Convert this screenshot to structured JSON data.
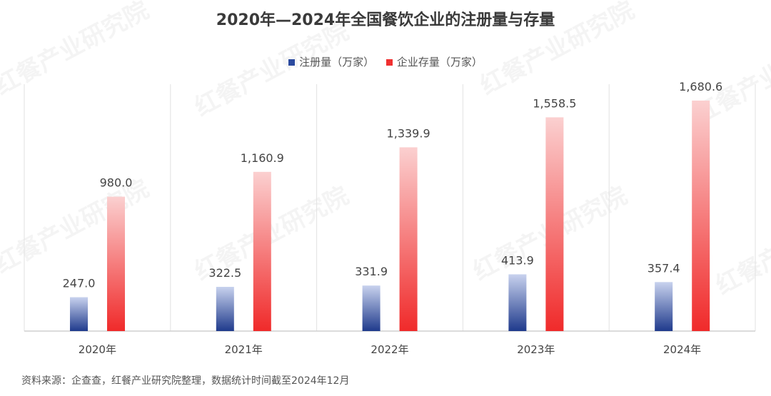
{
  "watermark": "红餐产业研究院",
  "source": "资料来源：企查查，红餐产业研究院整理，数据统计时间截至2024年12月",
  "chart_data": {
    "type": "bar",
    "title": "2020年—2024年全国餐饮企业的注册量与存量",
    "categories": [
      "2020年",
      "2021年",
      "2022年",
      "2023年",
      "2024年"
    ],
    "series": [
      {
        "name": "注册量（万家）",
        "values": [
          247.0,
          322.5,
          331.9,
          413.9,
          357.4
        ],
        "color": "#2b4a9e"
      },
      {
        "name": "企业存量（万家）",
        "values": [
          980.0,
          1160.9,
          1339.9,
          1558.5,
          1680.6
        ],
        "color": "#f03030"
      }
    ],
    "data_labels": [
      [
        "247.0",
        "322.5",
        "331.9",
        "413.9",
        "357.4"
      ],
      [
        "980.0",
        "1,160.9",
        "1,339.9",
        "1,558.5",
        "1,680.6"
      ]
    ],
    "xlabel": "",
    "ylabel": "",
    "ylim": [
      0,
      1800
    ],
    "grid": "vertical category separators",
    "legend": "top-center"
  }
}
